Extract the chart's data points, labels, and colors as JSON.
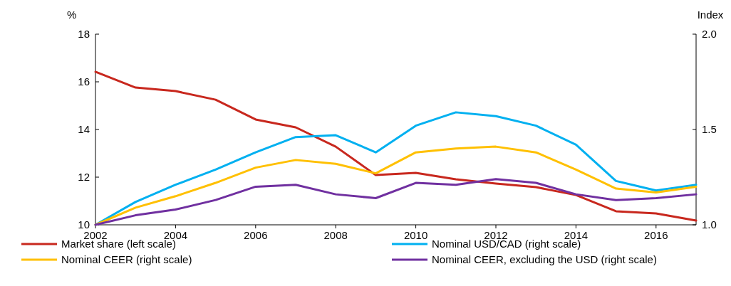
{
  "chart_data": {
    "type": "line",
    "ylabel": "%",
    "y2label": "Index",
    "x": [
      2002,
      2003,
      2004,
      2005,
      2006,
      2007,
      2008,
      2009,
      2010,
      2011,
      2012,
      2013,
      2014,
      2015,
      2016,
      2017
    ],
    "xlim": [
      2002,
      2017
    ],
    "xticks": [
      2002,
      2004,
      2006,
      2008,
      2010,
      2012,
      2014,
      2016
    ],
    "ylim": [
      10,
      18
    ],
    "yticks": [
      10,
      12,
      14,
      16,
      18
    ],
    "y2lim": [
      1.0,
      2.0
    ],
    "y2ticks": [
      {
        "value": 1.0,
        "label": "1.0"
      },
      {
        "value": 1.5,
        "label": "1.5"
      },
      {
        "value": 2.0,
        "label": "2.0"
      }
    ],
    "grid": false,
    "legend": "bottom",
    "series": [
      {
        "name": "Market share (left scale)",
        "color": "#c8281e",
        "values": [
          16.42,
          15.76,
          15.61,
          15.25,
          14.42,
          14.09,
          13.28,
          12.09,
          12.18,
          11.91,
          11.73,
          11.58,
          11.25,
          10.57,
          10.48,
          10.18
        ]
      },
      {
        "name": "Nominal USD/CAD (right scale)",
        "color": "#00b0f0",
        "axis": "y2",
        "values": [
          1.0,
          1.12,
          1.21,
          1.29,
          1.38,
          1.46,
          1.47,
          1.38,
          1.52,
          1.59,
          1.57,
          1.52,
          1.42,
          1.23,
          1.18,
          1.21
        ]
      },
      {
        "name": "Nominal CEER (right scale)",
        "color": "#ffc000",
        "axis": "y2",
        "values": [
          1.0,
          1.09,
          1.15,
          1.22,
          1.3,
          1.34,
          1.32,
          1.27,
          1.38,
          1.4,
          1.41,
          1.38,
          1.29,
          1.19,
          1.17,
          1.2
        ]
      },
      {
        "name": "Nominal CEER, excluding the USD (right scale)",
        "color": "#7030a0",
        "axis": "y2",
        "values": [
          1.0,
          1.05,
          1.08,
          1.13,
          1.2,
          1.21,
          1.16,
          1.14,
          1.22,
          1.21,
          1.24,
          1.22,
          1.16,
          1.13,
          1.14,
          1.16
        ]
      }
    ]
  }
}
